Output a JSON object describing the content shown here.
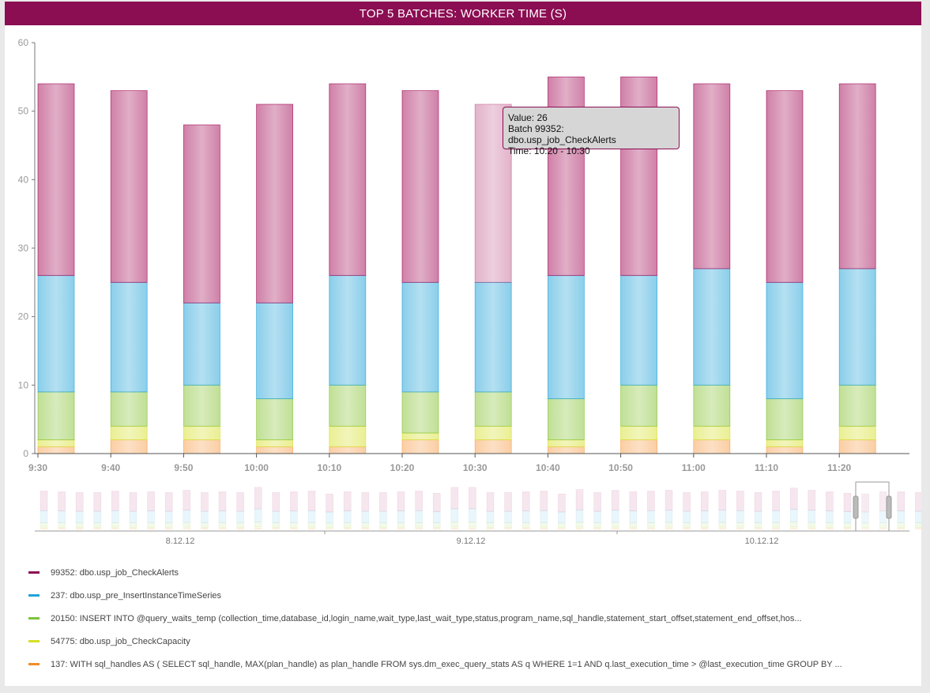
{
  "title": "TOP 5 BATCHES: WORKER TIME (S)",
  "chart_data": {
    "type": "bar",
    "stacked": true,
    "title": "TOP 5 BATCHES: WORKER TIME (S)",
    "xlabel": "",
    "ylabel": "",
    "ylim": [
      0,
      60
    ],
    "yticks": [
      0,
      10,
      20,
      30,
      40,
      50,
      60
    ],
    "grid": false,
    "categories": [
      "9:30",
      "9:40",
      "9:50",
      "10:00",
      "10:10",
      "10:20",
      "10:30",
      "10:40",
      "10:50",
      "11:00",
      "11:10",
      "11:20"
    ],
    "series": [
      {
        "name": "137: WITH sql_handles AS ( SELECT sql_handle, MAX(plan_handle) as plan_handle FROM sys.dm_exec_query_stats AS q WHERE 1=1 AND q.last_execution_time > @last_execution_time GROUP BY ...",
        "color": "#f7a65a",
        "values": [
          1,
          2,
          2,
          1,
          1,
          2,
          2,
          1,
          2,
          2,
          1,
          2
        ]
      },
      {
        "name": "54775: dbo.usp_job_CheckCapacity",
        "color": "#d9e23a",
        "values": [
          1,
          2,
          2,
          1,
          3,
          1,
          2,
          1,
          2,
          2,
          1,
          2
        ]
      },
      {
        "name": "20150: INSERT INTO @query_waits_temp (collection_time,database_id,login_name,wait_type,last_wait_type,status,program_name,sql_handle,statement_start_offset,statement_end_offset,hos...",
        "color": "#8dc63f",
        "values": [
          7,
          5,
          6,
          6,
          6,
          6,
          5,
          6,
          6,
          6,
          6,
          6
        ]
      },
      {
        "name": "237: dbo.usp_pre_InsertInstanceTimeSeries",
        "color": "#2aa6d9",
        "values": [
          17,
          16,
          12,
          14,
          16,
          16,
          16,
          18,
          16,
          17,
          17,
          17
        ]
      },
      {
        "name": "99352: dbo.usp_job_CheckAlerts",
        "color": "#a8185f",
        "values": [
          28,
          28,
          26,
          29,
          28,
          28,
          26,
          29,
          29,
          27,
          28,
          27
        ]
      }
    ],
    "highlight": {
      "category": "10:30",
      "series_index": 4
    },
    "tooltip": {
      "value_line": "Value: 26",
      "batch_line": "Batch 99352: dbo.usp_job_CheckAlerts",
      "time_line": "Time: 10:20 - 10:30"
    },
    "navigator": {
      "date_labels": [
        "8.12.12",
        "9.12.12",
        "10.12.12"
      ],
      "totals": [
        53,
        52,
        51,
        51,
        53,
        51,
        52,
        51,
        54,
        51,
        52,
        51,
        58,
        51,
        52,
        53,
        49,
        52,
        51,
        51,
        52,
        53,
        50,
        58,
        58,
        51,
        51,
        52,
        53,
        49,
        55,
        51,
        54,
        52,
        53,
        54,
        51,
        52,
        54,
        53,
        51,
        53,
        57,
        54,
        52,
        50,
        49,
        52,
        52,
        51,
        55,
        56,
        49
      ]
    }
  },
  "legend": [
    {
      "label": "99352: dbo.usp_job_CheckAlerts",
      "color": "#8b0d52"
    },
    {
      "label": "237: dbo.usp_pre_InsertInstanceTimeSeries",
      "color": "#1fa3d9"
    },
    {
      "label": "20150: INSERT INTO @query_waits_temp (collection_time,database_id,login_name,wait_type,last_wait_type,status,program_name,sql_handle,statement_start_offset,statement_end_offset,hos...",
      "color": "#7cc33c"
    },
    {
      "label": "54775: dbo.usp_job_CheckCapacity",
      "color": "#d6e025"
    },
    {
      "label": "137: WITH sql_handles AS ( SELECT sql_handle, MAX(plan_handle) as plan_handle FROM sys.dm_exec_query_stats AS q WHERE 1=1 AND q.last_execution_time > @last_execution_time GROUP BY ...",
      "color": "#f28c28"
    }
  ]
}
